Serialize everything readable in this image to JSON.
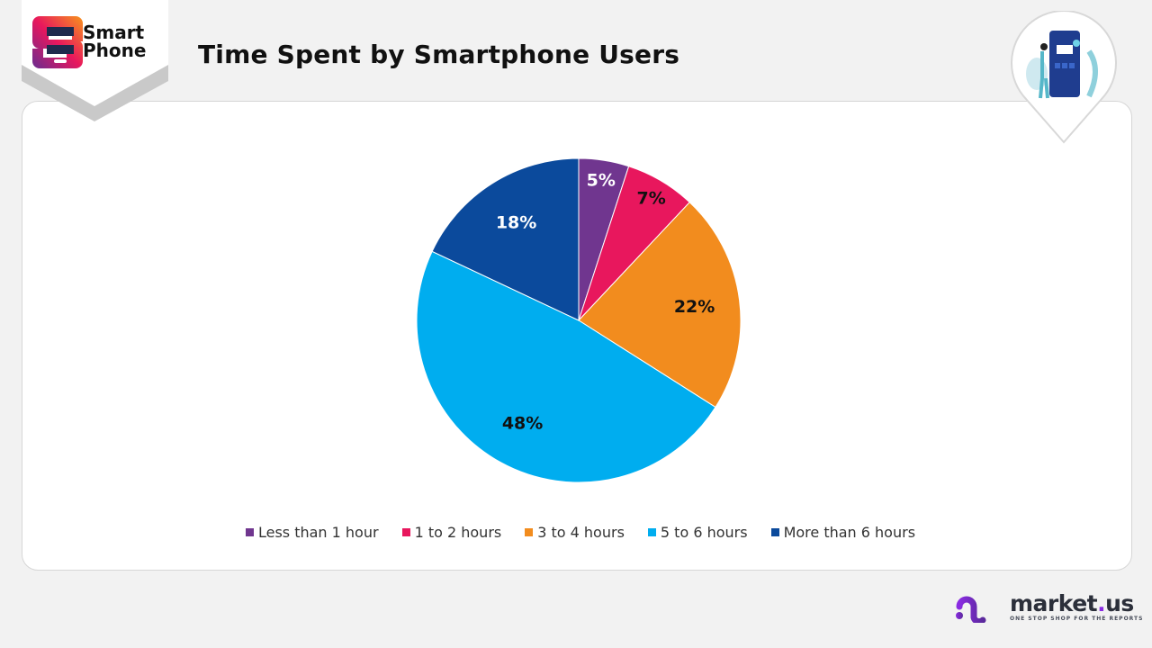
{
  "brand": {
    "logo_line1": "Smart",
    "logo_line2": "Phone"
  },
  "header": {
    "title": "Time Spent by Smartphone Users"
  },
  "footer": {
    "name_a": "market",
    "name_dot": ".",
    "name_b": "us",
    "tagline": "ONE STOP SHOP FOR THE REPORTS"
  },
  "chart_data": {
    "type": "pie",
    "title": "Time Spent by Smartphone Users",
    "categories": [
      "Less than 1 hour",
      "1 to 2 hours",
      "3 to 4 hours",
      "5 to 6 hours",
      "More than 6 hours"
    ],
    "values": [
      5,
      7,
      22,
      48,
      18
    ],
    "labels": [
      "5%",
      "7%",
      "22%",
      "48%",
      "18%"
    ],
    "colors": [
      "#70368f",
      "#e8175d",
      "#f28c1e",
      "#00adef",
      "#0b4a9c"
    ],
    "label_colors": [
      "#ffffff",
      "#111111",
      "#111111",
      "#111111",
      "#ffffff"
    ],
    "start": "top",
    "direction": "clockwise",
    "legend_position": "bottom"
  }
}
